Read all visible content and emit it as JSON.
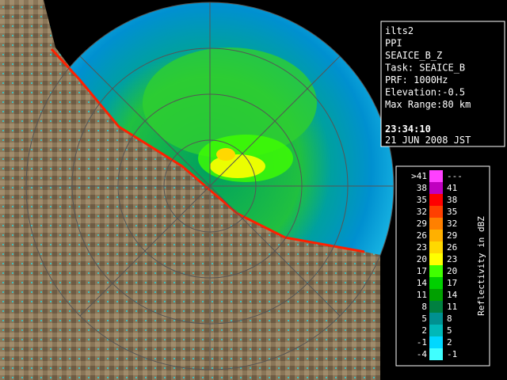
{
  "info": {
    "lines": [
      "ilts2",
      "PPI",
      "SEAICE_B_Z",
      "Task: SEAICE_B",
      "PRF: 1000Hz",
      "Elevation:-0.5",
      "Max Range:80 km"
    ],
    "time": "23:34:10",
    "date": "21 JUN 2008 JST"
  },
  "legend": {
    "title": "Reflectivity in dBZ",
    "rows": [
      {
        "low": ">41",
        "high": "---",
        "color": "#ff40ff"
      },
      {
        "low": "38",
        "high": "41",
        "color": "#c000c0"
      },
      {
        "low": "35",
        "high": "38",
        "color": "#ff0000"
      },
      {
        "low": "32",
        "high": "35",
        "color": "#ff4000"
      },
      {
        "low": "29",
        "high": "32",
        "color": "#ff8000"
      },
      {
        "low": "26",
        "high": "29",
        "color": "#ffb000"
      },
      {
        "low": "23",
        "high": "26",
        "color": "#ffd800"
      },
      {
        "low": "20",
        "high": "23",
        "color": "#ffff00"
      },
      {
        "low": "17",
        "high": "20",
        "color": "#40ff00"
      },
      {
        "low": "14",
        "high": "17",
        "color": "#00d000"
      },
      {
        "low": "11",
        "high": "14",
        "color": "#00a000"
      },
      {
        "low": "8",
        "high": "11",
        "color": "#008040"
      },
      {
        "low": "5",
        "high": "8",
        "color": "#009090"
      },
      {
        "low": "2",
        "high": "5",
        "color": "#00b8b8"
      },
      {
        "low": "-1",
        "high": "2",
        "color": "#00d8ff"
      },
      {
        "low": "-4",
        "high": "-1",
        "color": "#40ffff"
      }
    ]
  }
}
